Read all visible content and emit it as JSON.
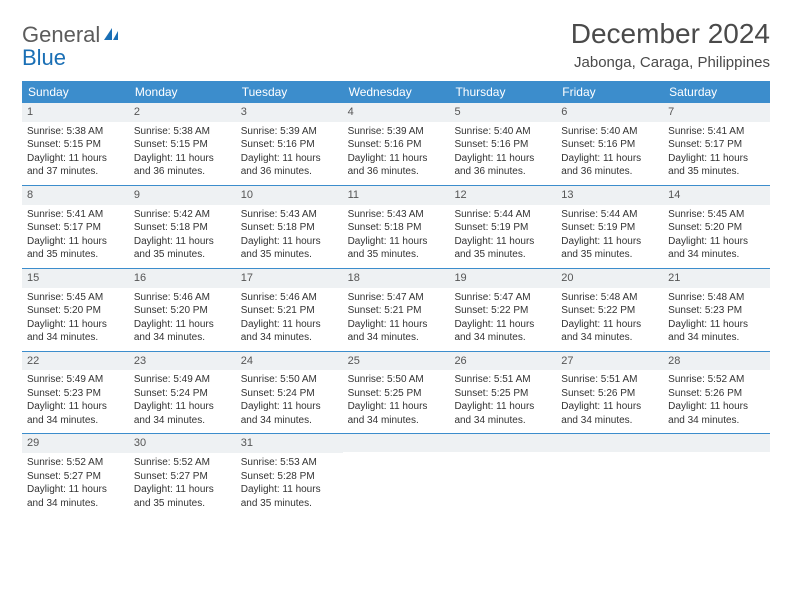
{
  "brand": {
    "general": "General",
    "blue": "Blue"
  },
  "title": "December 2024",
  "location": "Jabonga, Caraga, Philippines",
  "colors": {
    "header_bg": "#3c8dcc",
    "header_text": "#ffffff",
    "daynum_bg": "#eef1f3",
    "border": "#3c8dcc",
    "text": "#333333",
    "title_text": "#4a4a4a",
    "logo_gray": "#5c5c5c",
    "logo_blue": "#1a6fb5"
  },
  "day_names": [
    "Sunday",
    "Monday",
    "Tuesday",
    "Wednesday",
    "Thursday",
    "Friday",
    "Saturday"
  ],
  "weeks": [
    [
      {
        "n": "1",
        "sr": "5:38 AM",
        "ss": "5:15 PM",
        "dl": "11 hours and 37 minutes."
      },
      {
        "n": "2",
        "sr": "5:38 AM",
        "ss": "5:15 PM",
        "dl": "11 hours and 36 minutes."
      },
      {
        "n": "3",
        "sr": "5:39 AM",
        "ss": "5:16 PM",
        "dl": "11 hours and 36 minutes."
      },
      {
        "n": "4",
        "sr": "5:39 AM",
        "ss": "5:16 PM",
        "dl": "11 hours and 36 minutes."
      },
      {
        "n": "5",
        "sr": "5:40 AM",
        "ss": "5:16 PM",
        "dl": "11 hours and 36 minutes."
      },
      {
        "n": "6",
        "sr": "5:40 AM",
        "ss": "5:16 PM",
        "dl": "11 hours and 36 minutes."
      },
      {
        "n": "7",
        "sr": "5:41 AM",
        "ss": "5:17 PM",
        "dl": "11 hours and 35 minutes."
      }
    ],
    [
      {
        "n": "8",
        "sr": "5:41 AM",
        "ss": "5:17 PM",
        "dl": "11 hours and 35 minutes."
      },
      {
        "n": "9",
        "sr": "5:42 AM",
        "ss": "5:18 PM",
        "dl": "11 hours and 35 minutes."
      },
      {
        "n": "10",
        "sr": "5:43 AM",
        "ss": "5:18 PM",
        "dl": "11 hours and 35 minutes."
      },
      {
        "n": "11",
        "sr": "5:43 AM",
        "ss": "5:18 PM",
        "dl": "11 hours and 35 minutes."
      },
      {
        "n": "12",
        "sr": "5:44 AM",
        "ss": "5:19 PM",
        "dl": "11 hours and 35 minutes."
      },
      {
        "n": "13",
        "sr": "5:44 AM",
        "ss": "5:19 PM",
        "dl": "11 hours and 35 minutes."
      },
      {
        "n": "14",
        "sr": "5:45 AM",
        "ss": "5:20 PM",
        "dl": "11 hours and 34 minutes."
      }
    ],
    [
      {
        "n": "15",
        "sr": "5:45 AM",
        "ss": "5:20 PM",
        "dl": "11 hours and 34 minutes."
      },
      {
        "n": "16",
        "sr": "5:46 AM",
        "ss": "5:20 PM",
        "dl": "11 hours and 34 minutes."
      },
      {
        "n": "17",
        "sr": "5:46 AM",
        "ss": "5:21 PM",
        "dl": "11 hours and 34 minutes."
      },
      {
        "n": "18",
        "sr": "5:47 AM",
        "ss": "5:21 PM",
        "dl": "11 hours and 34 minutes."
      },
      {
        "n": "19",
        "sr": "5:47 AM",
        "ss": "5:22 PM",
        "dl": "11 hours and 34 minutes."
      },
      {
        "n": "20",
        "sr": "5:48 AM",
        "ss": "5:22 PM",
        "dl": "11 hours and 34 minutes."
      },
      {
        "n": "21",
        "sr": "5:48 AM",
        "ss": "5:23 PM",
        "dl": "11 hours and 34 minutes."
      }
    ],
    [
      {
        "n": "22",
        "sr": "5:49 AM",
        "ss": "5:23 PM",
        "dl": "11 hours and 34 minutes."
      },
      {
        "n": "23",
        "sr": "5:49 AM",
        "ss": "5:24 PM",
        "dl": "11 hours and 34 minutes."
      },
      {
        "n": "24",
        "sr": "5:50 AM",
        "ss": "5:24 PM",
        "dl": "11 hours and 34 minutes."
      },
      {
        "n": "25",
        "sr": "5:50 AM",
        "ss": "5:25 PM",
        "dl": "11 hours and 34 minutes."
      },
      {
        "n": "26",
        "sr": "5:51 AM",
        "ss": "5:25 PM",
        "dl": "11 hours and 34 minutes."
      },
      {
        "n": "27",
        "sr": "5:51 AM",
        "ss": "5:26 PM",
        "dl": "11 hours and 34 minutes."
      },
      {
        "n": "28",
        "sr": "5:52 AM",
        "ss": "5:26 PM",
        "dl": "11 hours and 34 minutes."
      }
    ],
    [
      {
        "n": "29",
        "sr": "5:52 AM",
        "ss": "5:27 PM",
        "dl": "11 hours and 34 minutes."
      },
      {
        "n": "30",
        "sr": "5:52 AM",
        "ss": "5:27 PM",
        "dl": "11 hours and 35 minutes."
      },
      {
        "n": "31",
        "sr": "5:53 AM",
        "ss": "5:28 PM",
        "dl": "11 hours and 35 minutes."
      },
      null,
      null,
      null,
      null
    ]
  ],
  "labels": {
    "sunrise": "Sunrise: ",
    "sunset": "Sunset: ",
    "daylight": "Daylight: "
  }
}
